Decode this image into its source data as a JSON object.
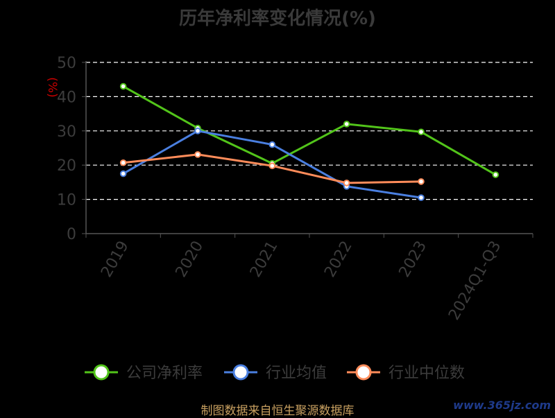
{
  "chart_data": {
    "type": "line",
    "title": "历年净利率变化情况(%)",
    "ylabel": "(%)",
    "categories": [
      "2019",
      "2020",
      "2021",
      "2022",
      "2023",
      "2024Q1-Q3"
    ],
    "ylim": [
      0,
      50
    ],
    "yticks": [
      0,
      10,
      20,
      30,
      40,
      50
    ],
    "grid": true,
    "legend_position": "bottom",
    "series": [
      {
        "name": "公司净利率",
        "color": "#52c41a",
        "values": [
          43.0,
          30.8,
          20.5,
          32.0,
          29.7,
          17.2
        ]
      },
      {
        "name": "行业均值",
        "color": "#4a7fe0",
        "values": [
          17.5,
          30.0,
          26.0,
          13.8,
          10.5,
          null
        ]
      },
      {
        "name": "行业中位数",
        "color": "#ff8c5a",
        "values": [
          20.7,
          23.1,
          19.8,
          14.8,
          15.2,
          null
        ]
      }
    ]
  },
  "footer": {
    "source": "制图数据来自恒生聚源数据库"
  },
  "watermark": {
    "text": "www.365jz.com"
  },
  "colors": {
    "background": "#000000",
    "axis": "#555555",
    "gridline": "#ffffff",
    "ylabel": "#cc0000"
  }
}
